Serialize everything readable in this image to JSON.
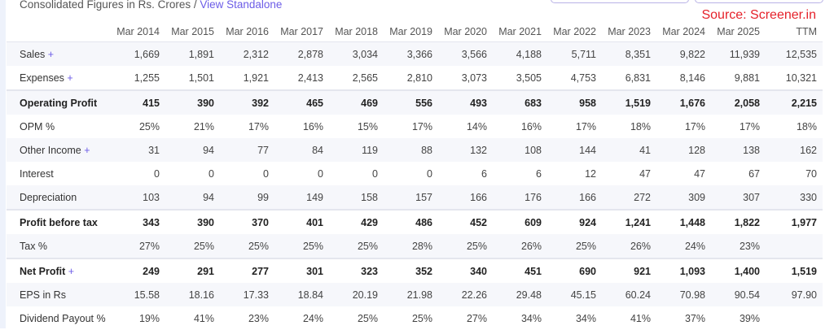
{
  "header": {
    "subtitle": "Consolidated Figures in Rs. Crores / ",
    "view_link": "View Standalone",
    "source": "Source: Screener.in"
  },
  "columns": [
    "Mar 2014",
    "Mar 2015",
    "Mar 2016",
    "Mar 2017",
    "Mar 2018",
    "Mar 2019",
    "Mar 2020",
    "Mar 2021",
    "Mar 2022",
    "Mar 2023",
    "Mar 2024",
    "Mar 2025",
    "TTM"
  ],
  "rows": [
    {
      "label": "Sales",
      "expandable": true,
      "bold": false,
      "values": [
        "1,669",
        "1,891",
        "2,312",
        "2,878",
        "3,034",
        "3,366",
        "3,566",
        "4,188",
        "5,711",
        "8,351",
        "9,822",
        "11,939",
        "12,535"
      ]
    },
    {
      "label": "Expenses",
      "expandable": true,
      "bold": false,
      "values": [
        "1,255",
        "1,501",
        "1,921",
        "2,413",
        "2,565",
        "2,810",
        "3,073",
        "3,505",
        "4,753",
        "6,831",
        "8,146",
        "9,881",
        "10,321"
      ]
    },
    {
      "label": "Operating Profit",
      "expandable": false,
      "bold": true,
      "values": [
        "415",
        "390",
        "392",
        "465",
        "469",
        "556",
        "493",
        "683",
        "958",
        "1,519",
        "1,676",
        "2,058",
        "2,215"
      ]
    },
    {
      "label": "OPM %",
      "expandable": false,
      "bold": false,
      "values": [
        "25%",
        "21%",
        "17%",
        "16%",
        "15%",
        "17%",
        "14%",
        "16%",
        "17%",
        "18%",
        "17%",
        "17%",
        "18%"
      ]
    },
    {
      "label": "Other Income",
      "expandable": true,
      "bold": false,
      "values": [
        "31",
        "94",
        "77",
        "84",
        "119",
        "88",
        "132",
        "108",
        "144",
        "41",
        "128",
        "138",
        "162"
      ]
    },
    {
      "label": "Interest",
      "expandable": false,
      "bold": false,
      "values": [
        "0",
        "0",
        "0",
        "0",
        "0",
        "0",
        "6",
        "6",
        "12",
        "47",
        "47",
        "67",
        "70"
      ]
    },
    {
      "label": "Depreciation",
      "expandable": false,
      "bold": false,
      "values": [
        "103",
        "94",
        "99",
        "149",
        "158",
        "157",
        "166",
        "176",
        "166",
        "272",
        "309",
        "307",
        "330"
      ]
    },
    {
      "label": "Profit before tax",
      "expandable": false,
      "bold": true,
      "values": [
        "343",
        "390",
        "370",
        "401",
        "429",
        "486",
        "452",
        "609",
        "924",
        "1,241",
        "1,448",
        "1,822",
        "1,977"
      ]
    },
    {
      "label": "Tax %",
      "expandable": false,
      "bold": false,
      "values": [
        "27%",
        "25%",
        "25%",
        "25%",
        "25%",
        "28%",
        "25%",
        "26%",
        "25%",
        "26%",
        "24%",
        "23%",
        ""
      ]
    },
    {
      "label": "Net Profit",
      "expandable": true,
      "bold": true,
      "values": [
        "249",
        "291",
        "277",
        "301",
        "323",
        "352",
        "340",
        "451",
        "690",
        "921",
        "1,093",
        "1,400",
        "1,519"
      ]
    },
    {
      "label": "EPS in Rs",
      "expandable": false,
      "bold": false,
      "values": [
        "15.58",
        "18.16",
        "17.33",
        "18.84",
        "20.19",
        "21.98",
        "22.26",
        "29.48",
        "45.15",
        "60.24",
        "70.98",
        "90.54",
        "97.90"
      ]
    },
    {
      "label": "Dividend Payout %",
      "expandable": false,
      "bold": false,
      "values": [
        "19%",
        "41%",
        "23%",
        "24%",
        "25%",
        "25%",
        "27%",
        "34%",
        "34%",
        "41%",
        "37%",
        "39%",
        ""
      ]
    }
  ]
}
